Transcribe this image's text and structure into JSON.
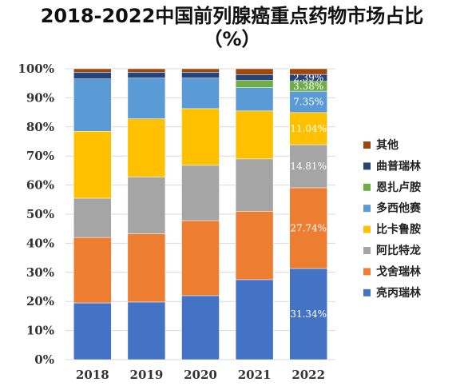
{
  "title": "2018-2022中国前列腺癌重点药物市场占比",
  "subtitle": "（%）",
  "chart_data": {
    "type": "bar",
    "stacked": true,
    "categories": [
      "2018",
      "2019",
      "2020",
      "2021",
      "2022"
    ],
    "ylim": [
      0,
      100
    ],
    "yticks": [
      "0%",
      "10%",
      "20%",
      "30%",
      "40%",
      "50%",
      "60%",
      "70%",
      "80%",
      "90%",
      "100%"
    ],
    "legend_position": "right",
    "series": [
      {
        "name": "亮丙瑞林",
        "color": "#4472C4",
        "values": [
          19.5,
          19.8,
          22.0,
          27.5,
          31.34
        ],
        "labels": [
          "",
          "",
          "",
          "",
          "31.34%"
        ]
      },
      {
        "name": "戈舍瑞林",
        "color": "#ED7D31",
        "values": [
          22.5,
          23.5,
          25.8,
          23.5,
          27.74
        ],
        "labels": [
          "",
          "",
          "",
          "",
          "27.74%"
        ]
      },
      {
        "name": "阿比特龙",
        "color": "#A5A5A5",
        "values": [
          13.5,
          19.5,
          19.0,
          18.0,
          14.81
        ],
        "labels": [
          "",
          "",
          "",
          "",
          "14.81%"
        ]
      },
      {
        "name": "比卡鲁胺",
        "color": "#FFC000",
        "values": [
          23.0,
          20.0,
          19.5,
          16.5,
          11.04
        ],
        "labels": [
          "",
          "",
          "",
          "",
          "11.04%"
        ]
      },
      {
        "name": "多西他赛",
        "color": "#5B9BD5",
        "values": [
          18.0,
          14.0,
          10.5,
          8.0,
          7.35
        ],
        "labels": [
          "",
          "",
          "",
          "",
          "7.35%"
        ]
      },
      {
        "name": "恩扎卢胺",
        "color": "#70AD47",
        "values": [
          0,
          0,
          0,
          2.5,
          3.38
        ],
        "labels": [
          "",
          "",
          "",
          "",
          "3.38%"
        ]
      },
      {
        "name": "曲普瑞林",
        "color": "#264478",
        "values": [
          2.3,
          2.0,
          2.0,
          2.0,
          2.39
        ],
        "labels": [
          "",
          "",
          "",
          "",
          "2.39%"
        ]
      },
      {
        "name": "其他",
        "color": "#9E480E",
        "values": [
          1.2,
          1.2,
          1.2,
          2.0,
          1.95
        ],
        "labels": [
          "",
          "",
          "",
          "",
          ""
        ]
      }
    ]
  }
}
